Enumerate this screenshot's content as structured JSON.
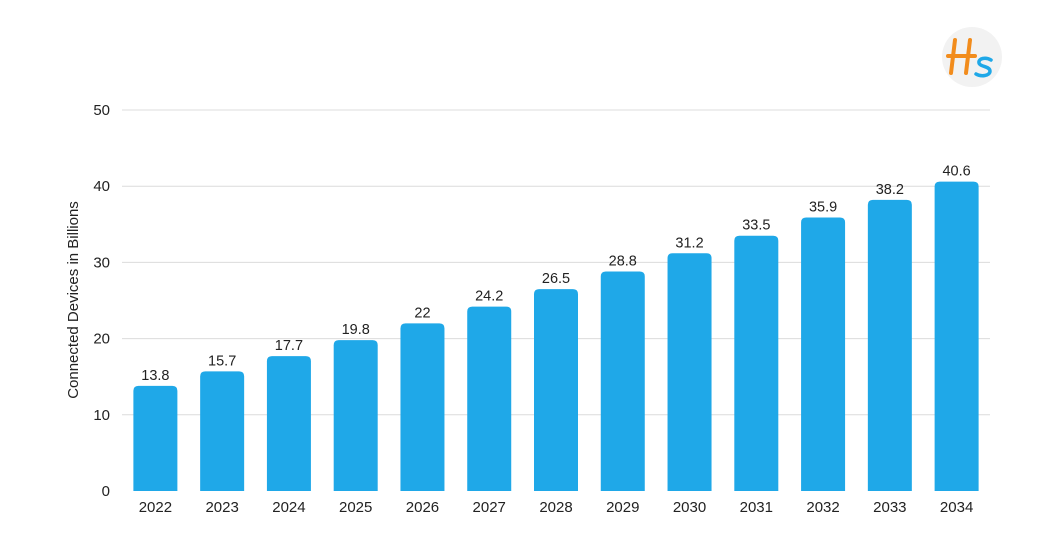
{
  "chart_data": {
    "type": "bar",
    "categories": [
      "2022",
      "2023",
      "2024",
      "2025",
      "2026",
      "2027",
      "2028",
      "2029",
      "2030",
      "2031",
      "2032",
      "2033",
      "2034"
    ],
    "values": [
      13.8,
      15.7,
      17.7,
      19.8,
      22,
      24.2,
      26.5,
      28.8,
      31.2,
      33.5,
      35.9,
      38.2,
      40.6
    ],
    "value_labels": [
      "13.8",
      "15.7",
      "17.7",
      "19.8",
      "22",
      "24.2",
      "26.5",
      "28.8",
      "31.2",
      "33.5",
      "35.9",
      "38.2",
      "40.6"
    ],
    "title": "",
    "xlabel": "",
    "ylabel": "Connected Devices in Billions",
    "ylim": [
      0,
      50
    ],
    "yticks": [
      0,
      10,
      20,
      30,
      40,
      50
    ],
    "ytick_labels": [
      "0",
      "10",
      "20",
      "30",
      "40",
      "50"
    ],
    "grid": true,
    "bar_color": "#1fa8e8",
    "grid_color": "#dcdcdc"
  },
  "logo": {
    "text": "HS",
    "color_primary": "#f28c1c",
    "color_secondary": "#1fa8e8"
  }
}
